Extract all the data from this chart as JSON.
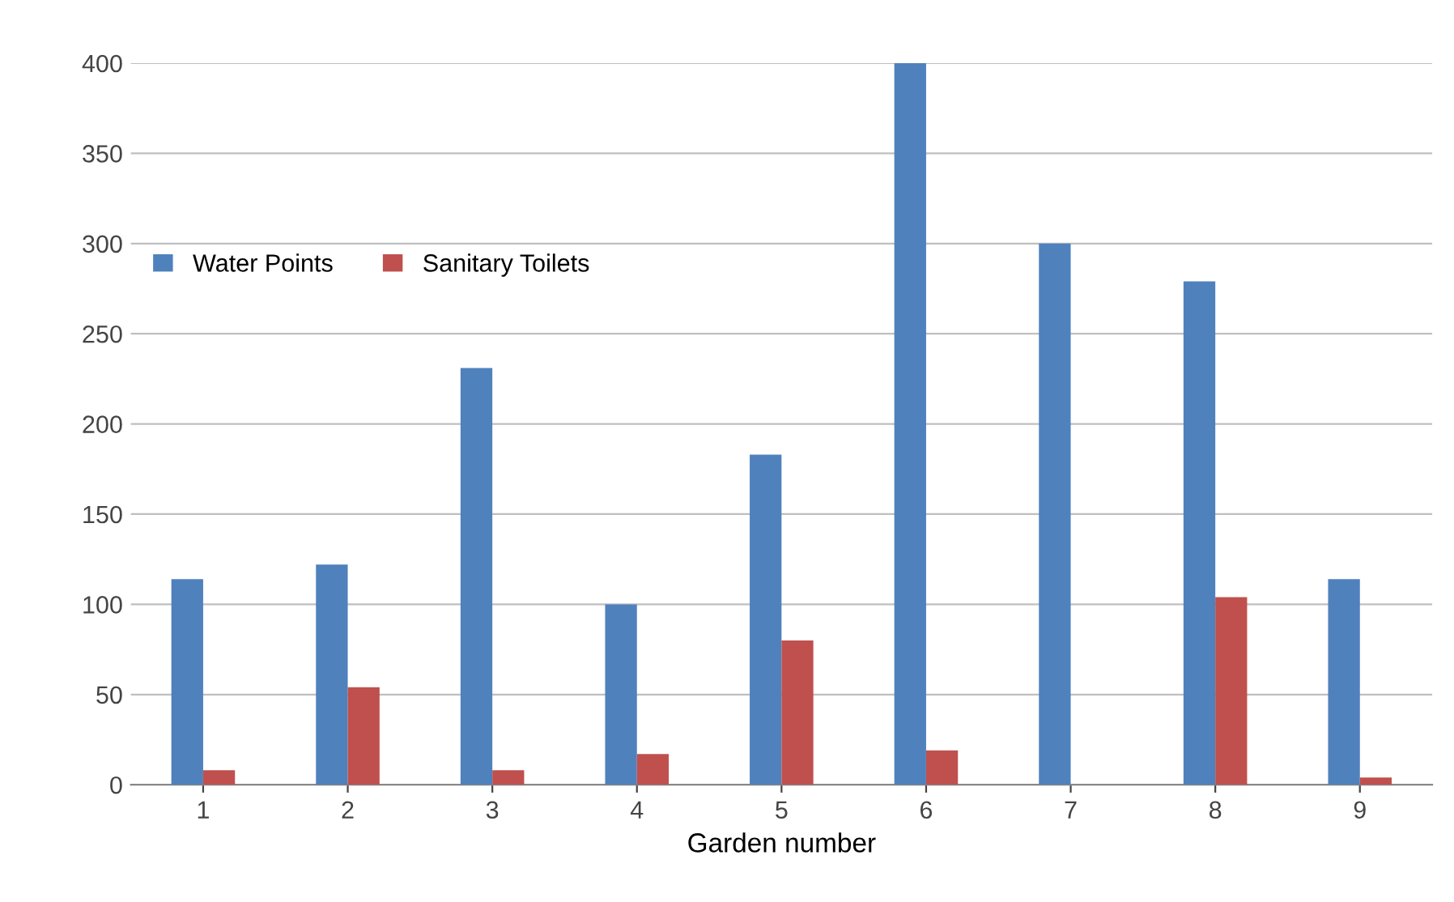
{
  "chart_data": {
    "type": "bar",
    "xlabel": "Garden number",
    "categories": [
      "1",
      "2",
      "3",
      "4",
      "5",
      "6",
      "7",
      "8",
      "9"
    ],
    "series": [
      {
        "name": "Water Points",
        "color": "#4f81bd",
        "values": [
          114,
          122,
          231,
          100,
          183,
          400,
          300,
          279,
          114
        ]
      },
      {
        "name": "Sanitary Toilets",
        "color": "#c0504d",
        "values": [
          8,
          54,
          8,
          17,
          80,
          19,
          null,
          104,
          4
        ]
      }
    ],
    "ylim": [
      0,
      400
    ],
    "yticks": [
      0,
      50,
      100,
      150,
      200,
      250,
      300,
      350,
      400
    ],
    "grid": "y",
    "legend": "left"
  }
}
